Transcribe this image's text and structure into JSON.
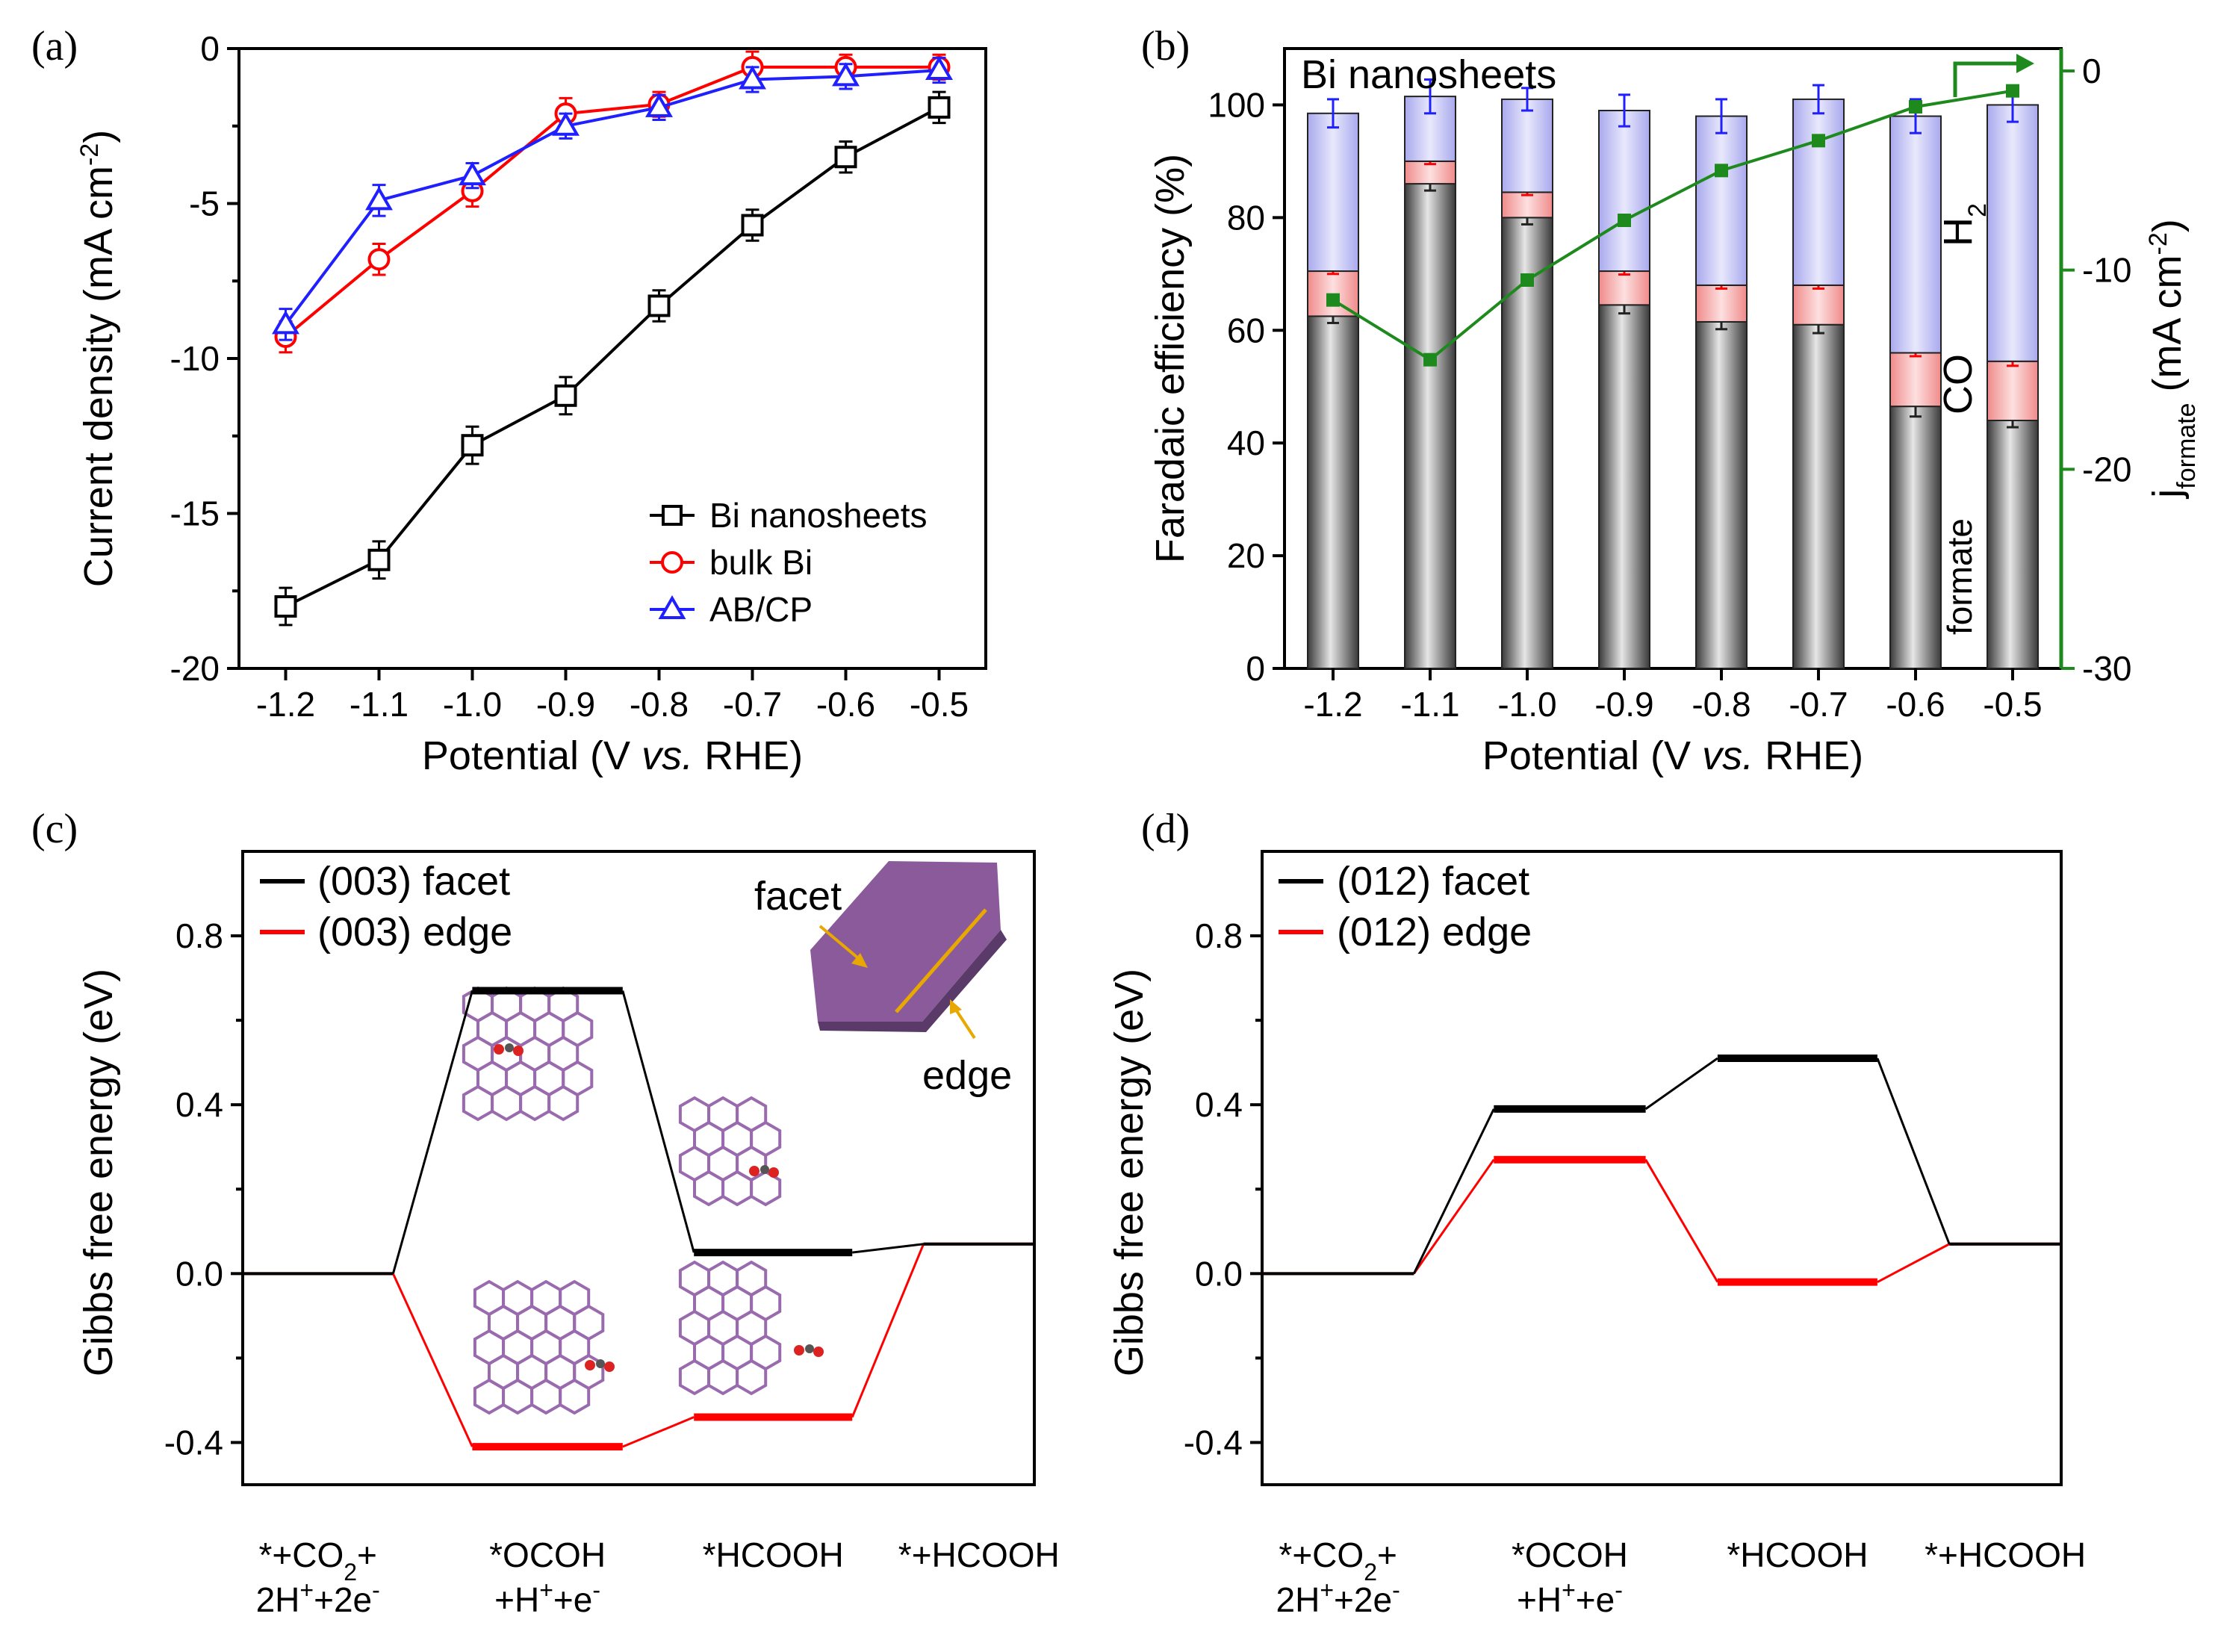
{
  "colors": {
    "black": "#000000",
    "red": "#ff0000",
    "blue": "#1f1fff",
    "green": "#1e8a1e",
    "h2_fill": "#c8c8f5",
    "co_fill": "#f7c3c3",
    "formate_fill": "#707070",
    "purple": "#8a5a9a",
    "arrow": "#e8a800"
  },
  "chart_data": [
    {
      "type": "line",
      "panel": "(a)",
      "xlabel_prefix": "Potential (V ",
      "xlabel_italic": "vs.",
      "xlabel_suffix": " RHE)",
      "ylabel": "Current density (mA cm",
      "ylabel_sup": "-2",
      "ylabel_end": ")",
      "x": [
        -1.2,
        -1.1,
        -1.0,
        -0.9,
        -0.8,
        -0.7,
        -0.6,
        -0.5
      ],
      "xtick_labels": [
        "-1.2",
        "-1.1",
        "-1.0",
        "-0.9",
        "-0.8",
        "-0.7",
        "-0.6",
        "-0.5"
      ],
      "xlim": [
        -1.25,
        -0.45
      ],
      "ylim": [
        -20,
        0
      ],
      "yticks": [
        0,
        -5,
        -10,
        -15,
        -20
      ],
      "ytick_labels": [
        "0",
        "-5",
        "-10",
        "-15",
        "-20"
      ],
      "legend_position": "bottom-right",
      "series": [
        {
          "name": "Bi nanosheets",
          "marker": "square",
          "color": "#000000",
          "values": [
            -18.0,
            -16.5,
            -12.8,
            -11.2,
            -8.3,
            -5.7,
            -3.5,
            -1.9
          ],
          "errors": [
            0.6,
            0.6,
            0.6,
            0.6,
            0.5,
            0.5,
            0.5,
            0.5
          ]
        },
        {
          "name": "bulk Bi",
          "marker": "circle",
          "color": "#ff0000",
          "values": [
            -9.3,
            -6.8,
            -4.6,
            -2.1,
            -1.8,
            -0.6,
            -0.6,
            -0.6
          ],
          "errors": [
            0.5,
            0.5,
            0.5,
            0.5,
            0.4,
            0.5,
            0.4,
            0.4
          ]
        },
        {
          "name": "AB/CP",
          "marker": "triangle",
          "color": "#1f1fff",
          "values": [
            -8.9,
            -4.9,
            -4.1,
            -2.5,
            -1.9,
            -1.0,
            -0.9,
            -0.7
          ],
          "errors": [
            0.5,
            0.5,
            0.4,
            0.4,
            0.4,
            0.4,
            0.4,
            0.4
          ]
        }
      ]
    },
    {
      "type": "bar",
      "panel": "(b)",
      "title_in_plot": "Bi nanosheets",
      "stacked": true,
      "categories": [
        "-1.2",
        "-1.1",
        "-1.0",
        "-0.9",
        "-0.8",
        "-0.7",
        "-0.6",
        "-0.5"
      ],
      "xlabel_prefix": "Potential (V ",
      "xlabel_italic": "vs.",
      "xlabel_suffix": " RHE)",
      "ylabel": "Faradaic efficiency (%)",
      "ylim": [
        0,
        110
      ],
      "yticks": [
        0,
        20,
        40,
        60,
        80,
        100
      ],
      "ytick_labels": [
        "0",
        "20",
        "40",
        "60",
        "80",
        "100"
      ],
      "series": [
        {
          "name": "formate",
          "values": [
            62.5,
            86,
            80,
            64.5,
            61.5,
            61,
            46.5,
            44
          ],
          "errors": [
            1.2,
            1.2,
            1.2,
            1.5,
            1.3,
            1.5,
            1.8,
            1.2
          ]
        },
        {
          "name": "CO",
          "values": [
            8,
            4,
            4.5,
            6,
            6.5,
            7,
            9.5,
            10.5
          ],
          "errors": [
            0.5,
            0.5,
            0.5,
            0.6,
            0.6,
            0.6,
            0.6,
            0.8
          ]
        },
        {
          "name": "H2",
          "values": [
            28,
            11.5,
            16.5,
            28.5,
            30,
            33,
            42,
            45.5
          ],
          "errors": [
            2.5,
            3,
            2,
            2.8,
            3,
            2.5,
            3,
            3
          ]
        }
      ],
      "series_labels": {
        "formate": "formate",
        "CO": "CO",
        "H2_base": "H",
        "H2_sub": "2"
      },
      "secondary_axis": {
        "label_j": "j",
        "label_sub": "formate",
        "label_units": " (mA cm",
        "label_sup": "-2",
        "label_end": ")",
        "ylim": [
          -30,
          0
        ],
        "yticks": [
          0,
          -10,
          -20,
          -30
        ],
        "ytick_labels": [
          "0",
          "-10",
          "-20",
          "-30"
        ],
        "values": [
          -11.5,
          -14.5,
          -10.5,
          -7.5,
          -5.0,
          -3.5,
          -1.8,
          -1.0
        ]
      }
    },
    {
      "type": "line",
      "panel": "(c)",
      "ylabel": "Gibbs free energy (eV)",
      "ylim": [
        -0.5,
        1.0
      ],
      "yticks": [
        0.8,
        0.4,
        0.0,
        -0.4
      ],
      "ytick_labels": [
        "0.8",
        "0.4",
        "0.0",
        "-0.4"
      ],
      "steps": [
        "*+CO2+ 2H++2e-",
        "*OCOH +H++e-",
        "*HCOOH",
        "*+HCOOH"
      ],
      "series": [
        {
          "name": "(003) facet",
          "color": "#000000",
          "values": [
            0.0,
            0.67,
            0.05,
            0.07
          ]
        },
        {
          "name": "(003) edge",
          "color": "#ff0000",
          "values": [
            0.0,
            -0.41,
            -0.34,
            0.07
          ]
        }
      ],
      "legend_position": "top-left",
      "inset_labels": {
        "facet": "facet",
        "edge": "edge"
      }
    },
    {
      "type": "line",
      "panel": "(d)",
      "ylabel": "Gibbs free energy (eV)",
      "ylim": [
        -0.5,
        1.0
      ],
      "yticks": [
        0.8,
        0.4,
        0.0,
        -0.4
      ],
      "ytick_labels": [
        "0.8",
        "0.4",
        "0.0",
        "-0.4"
      ],
      "steps": [
        "*+CO2+ 2H++2e-",
        "*OCOH +H++e-",
        "*HCOOH",
        "*+HCOOH"
      ],
      "series": [
        {
          "name": "(012) facet",
          "color": "#000000",
          "values": [
            0.0,
            0.39,
            0.51,
            0.07
          ]
        },
        {
          "name": "(012) edge",
          "color": "#ff0000",
          "values": [
            0.0,
            0.27,
            -0.02,
            0.07
          ]
        }
      ],
      "legend_position": "top-left"
    }
  ],
  "step_labels": {
    "s1_line1_a": "*+CO",
    "s1_line1_sub": "2",
    "s1_line1_b": "+",
    "s1_line2_a": "2H",
    "s1_line2_sup1": "+",
    "s1_line2_b": "+2e",
    "s1_line2_sup2": "-",
    "s2_line1": "*OCOH",
    "s2_line2_a": "+H",
    "s2_line2_sup1": "+",
    "s2_line2_b": "+e",
    "s2_line2_sup2": "-",
    "s3": "*HCOOH",
    "s4": "*+HCOOH"
  }
}
